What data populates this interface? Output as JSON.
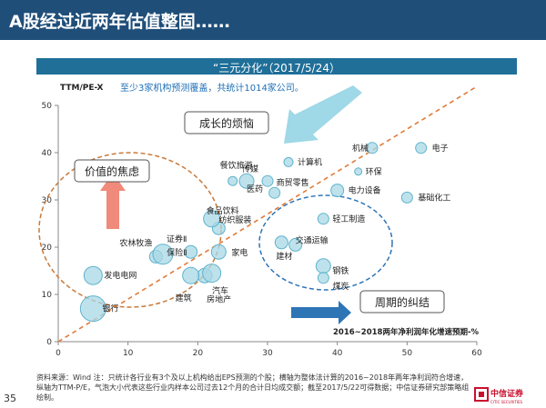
{
  "slide": {
    "title": "A股经过近两年估值整固……",
    "subtitle": "“三元分化”（2017/5/24）",
    "page_number": "35",
    "footnote": "资料来源：Wind 注：只统计各行业有3个及以上机构给出EPS预测的个股；横轴为整体法计算的2016~2018年两年净利润符合增速，纵轴为TTM-P/E，气泡大小代表这些行业内样本公司过去12个月的合计日均成交额；截至2017/5/22可得数据；中信证券研究部策略组绘制。",
    "logo_cn": "中信证券",
    "logo_en": "CITIC SECURITIES"
  },
  "colors": {
    "title_bar": "#1f4e79",
    "sub_bar": "#1f6f99",
    "bubble_fill": "#a8d8e6",
    "bubble_stroke": "#5fb3cc",
    "trend_line": "#e07b39",
    "value_oval": "#c87a3a",
    "cycle_oval": "#2e75b6",
    "growth_arrow": "#9fd8e6",
    "value_arrow": "#f08a7a",
    "cycle_arrow": "#2e75b6",
    "logo_red": "#c8102e"
  },
  "chart_data": {
    "type": "scatter",
    "ylabel": "TTM/PE-X",
    "xlabel": "2016~2018两年净利润年化增速预期-%",
    "xlim": [
      0,
      60
    ],
    "ylim": [
      0,
      50
    ],
    "xticks": [
      "0",
      "10",
      "20",
      "30",
      "40",
      "50",
      "60"
    ],
    "yticks": [
      "0",
      "10",
      "20",
      "30",
      "40",
      "50"
    ],
    "note": "至少3家机构预测覆盖，共统计1014家公司。",
    "trend_line": {
      "from": [
        0,
        0
      ],
      "to": [
        60,
        54
      ]
    },
    "points": [
      {
        "label": "银行",
        "x": 5,
        "y": 7,
        "size": 14
      },
      {
        "label": "发电电网",
        "x": 5,
        "y": 14,
        "size": 10
      },
      {
        "label": "农林牧渔",
        "x": 14,
        "y": 18,
        "size": 7
      },
      {
        "label": "证券Ⅱ",
        "x": 15,
        "y": 18.5,
        "size": 11
      },
      {
        "label": "保险Ⅱ",
        "x": 19,
        "y": 19,
        "size": 7
      },
      {
        "label": "家电",
        "x": 23,
        "y": 19,
        "size": 8
      },
      {
        "label": "汽车",
        "x": 21,
        "y": 14,
        "size": 8
      },
      {
        "label": "建筑",
        "x": 19,
        "y": 14,
        "size": 9
      },
      {
        "label": "房地产",
        "x": 22,
        "y": 14.5,
        "size": 10
      },
      {
        "label": "纺织服装",
        "x": 23,
        "y": 24,
        "size": 7
      },
      {
        "label": "食品饮料",
        "x": 22,
        "y": 26,
        "size": 9
      },
      {
        "label": "餐饮旅游",
        "x": 25,
        "y": 34,
        "size": 5
      },
      {
        "label": "传媒",
        "x": 27,
        "y": 34,
        "size": 8
      },
      {
        "label": "医药",
        "x": 30,
        "y": 34,
        "size": 6
      },
      {
        "label": "计算机",
        "x": 33,
        "y": 38,
        "size": 5
      },
      {
        "label": "商贸零售",
        "x": 31,
        "y": 31.5,
        "size": 6
      },
      {
        "label": "电力设备",
        "x": 40,
        "y": 32,
        "size": 7
      },
      {
        "label": "机械",
        "x": 45,
        "y": 41,
        "size": 6
      },
      {
        "label": "环保",
        "x": 43,
        "y": 36,
        "size": 4
      },
      {
        "label": "电子",
        "x": 52,
        "y": 41,
        "size": 6
      },
      {
        "label": "基础化工",
        "x": 50,
        "y": 30.5,
        "size": 6
      },
      {
        "label": "轻工制造",
        "x": 38,
        "y": 26,
        "size": 6
      },
      {
        "label": "建材",
        "x": 32,
        "y": 21,
        "size": 7
      },
      {
        "label": "交通运输",
        "x": 34,
        "y": 20.5,
        "size": 7
      },
      {
        "label": "钢铁",
        "x": 38,
        "y": 16,
        "size": 8
      },
      {
        "label": "煤炭",
        "x": 38,
        "y": 13.5,
        "size": 6
      }
    ],
    "annotations": {
      "growth": "成长的烦恼",
      "value": "价值的焦虑",
      "cycle": "周期的纠结"
    }
  }
}
